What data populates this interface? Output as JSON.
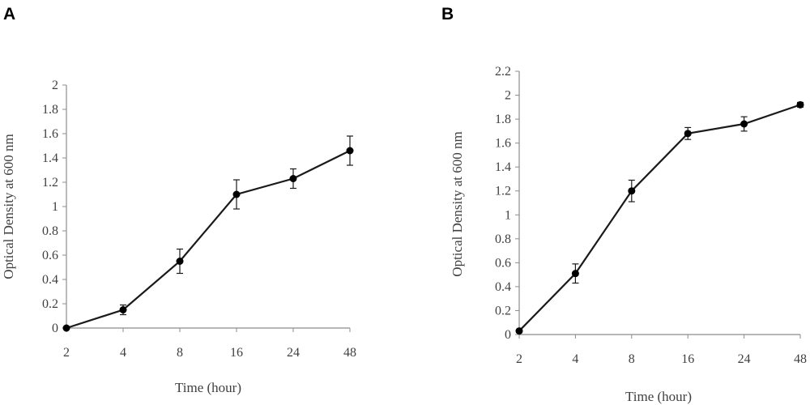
{
  "chart_data": [
    {
      "type": "line",
      "panel_label": "A",
      "categories": [
        "2",
        "4",
        "8",
        "16",
        "24",
        "48"
      ],
      "series": [
        {
          "values": [
            0.0,
            0.15,
            0.55,
            1.1,
            1.23,
            1.46
          ],
          "errors": [
            0.0,
            0.04,
            0.1,
            0.12,
            0.08,
            0.12
          ]
        }
      ],
      "xlabel": "Time (hour)",
      "ylabel": "Optical Density at 600 nm",
      "ylim": [
        0,
        2
      ],
      "yticks": [
        "0",
        "0.2",
        "0.4",
        "0.6",
        "0.8",
        "1",
        "1.2",
        "1.4",
        "1.6",
        "1.8",
        "2"
      ],
      "grid": false,
      "legend": "none"
    },
    {
      "type": "line",
      "panel_label": "B",
      "categories": [
        "2",
        "4",
        "8",
        "16",
        "24",
        "48"
      ],
      "series": [
        {
          "values": [
            0.03,
            0.51,
            1.2,
            1.68,
            1.76,
            1.92
          ],
          "errors": [
            0.0,
            0.08,
            0.09,
            0.05,
            0.06,
            0.02
          ]
        }
      ],
      "xlabel": "Time (hour)",
      "ylabel": "Optical Density at 600 nm",
      "ylim": [
        0,
        2.2
      ],
      "yticks": [
        "0",
        "0.2",
        "0.4",
        "0.6",
        "0.8",
        "1",
        "1.2",
        "1.4",
        "1.6",
        "1.8",
        "2",
        "2.2"
      ],
      "grid": false,
      "legend": "none"
    }
  ]
}
